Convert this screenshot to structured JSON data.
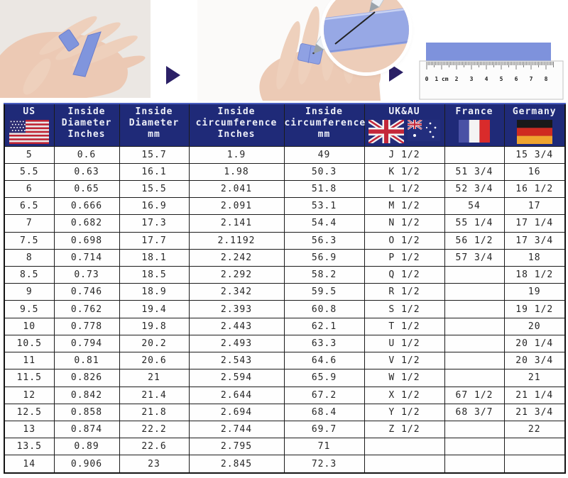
{
  "colors": {
    "header_bg": "#1f2a78",
    "grid_line": "#1b1b1b",
    "strip_blue": "#8095dd",
    "arrow": "#2b2066"
  },
  "instructions": {
    "steps": [
      "wrap-strip-around-finger",
      "mark-overlap-with-pen",
      "measure-strip-with-ruler"
    ],
    "ruler_labels": [
      "0",
      "1 cm",
      "2",
      "3",
      "4",
      "5",
      "6",
      "7",
      "8"
    ]
  },
  "table": {
    "headers": [
      {
        "label": "US"
      },
      {
        "lines": [
          "Inside",
          "Diameter",
          "Inches"
        ]
      },
      {
        "lines": [
          "Inside",
          "Diameter",
          "mm"
        ]
      },
      {
        "lines": [
          "Inside",
          "circumference",
          "Inches"
        ]
      },
      {
        "lines": [
          "Inside",
          "circumference",
          "mm"
        ]
      },
      {
        "label": "UK&AU"
      },
      {
        "label": "France"
      },
      {
        "label": "Germany"
      }
    ]
  },
  "chart_data": {
    "type": "table",
    "columns": [
      "US",
      "Inside Diameter Inches",
      "Inside Diameter mm",
      "Inside circumference Inches",
      "Inside circumference mm",
      "UK&AU",
      "France",
      "Germany"
    ],
    "rows": [
      [
        "5",
        "0.6",
        "15.7",
        "1.9",
        "49",
        "J 1/2",
        "",
        "15 3/4"
      ],
      [
        "5.5",
        "0.63",
        "16.1",
        "1.98",
        "50.3",
        "K 1/2",
        "51 3/4",
        "16"
      ],
      [
        "6",
        "0.65",
        "15.5",
        "2.041",
        "51.8",
        "L 1/2",
        "52 3/4",
        "16 1/2"
      ],
      [
        "6.5",
        "0.666",
        "16.9",
        "2.091",
        "53.1",
        "M 1/2",
        "54",
        "17"
      ],
      [
        "7",
        "0.682",
        "17.3",
        "2.141",
        "54.4",
        "N 1/2",
        "55 1/4",
        "17 1/4"
      ],
      [
        "7.5",
        "0.698",
        "17.7",
        "2.1192",
        "56.3",
        "O 1/2",
        "56 1/2",
        "17 3/4"
      ],
      [
        "8",
        "0.714",
        "18.1",
        "2.242",
        "56.9",
        "P 1/2",
        "57 3/4",
        "18"
      ],
      [
        "8.5",
        "0.73",
        "18.5",
        "2.292",
        "58.2",
        "Q 1/2",
        "",
        "18 1/2"
      ],
      [
        "9",
        "0.746",
        "18.9",
        "2.342",
        "59.5",
        "R 1/2",
        "",
        "19"
      ],
      [
        "9.5",
        "0.762",
        "19.4",
        "2.393",
        "60.8",
        "S 1/2",
        "",
        "19 1/2"
      ],
      [
        "10",
        "0.778",
        "19.8",
        "2.443",
        "62.1",
        "T 1/2",
        "",
        "20"
      ],
      [
        "10.5",
        "0.794",
        "20.2",
        "2.493",
        "63.3",
        "U 1/2",
        "",
        "20 1/4"
      ],
      [
        "11",
        "0.81",
        "20.6",
        "2.543",
        "64.6",
        "V 1/2",
        "",
        "20 3/4"
      ],
      [
        "11.5",
        "0.826",
        "21",
        "2.594",
        "65.9",
        "W 1/2",
        "",
        "21"
      ],
      [
        "12",
        "0.842",
        "21.4",
        "2.644",
        "67.2",
        "X 1/2",
        "67 1/2",
        "21 1/4"
      ],
      [
        "12.5",
        "0.858",
        "21.8",
        "2.694",
        "68.4",
        "Y 1/2",
        "68 3/7",
        "21 3/4"
      ],
      [
        "13",
        "0.874",
        "22.2",
        "2.744",
        "69.7",
        "Z 1/2",
        "",
        "22"
      ],
      [
        "13.5",
        "0.89",
        "22.6",
        "2.795",
        "71",
        "",
        "",
        ""
      ],
      [
        "14",
        "0.906",
        "23",
        "2.845",
        "72.3",
        "",
        "",
        ""
      ]
    ]
  }
}
